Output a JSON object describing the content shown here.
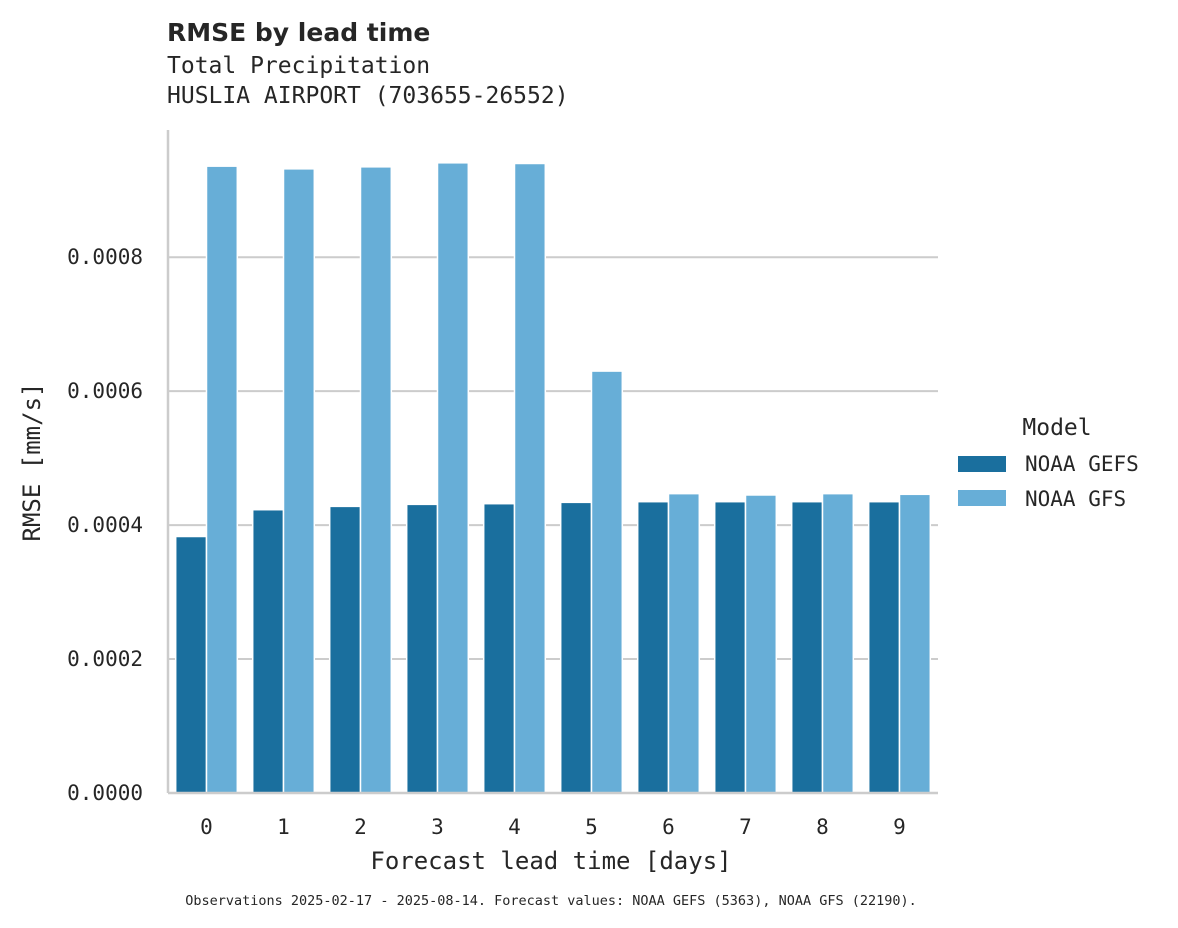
{
  "chart_data": {
    "type": "bar",
    "title": "RMSE by lead time",
    "subtitle_lines": [
      "Total Precipitation",
      "HUSLIA AIRPORT (703655-26552)"
    ],
    "xlabel": "Forecast lead time [days]",
    "ylabel": "RMSE [mm/s]",
    "ylim": [
      0,
      0.00099
    ],
    "yticks": [
      "0.0000",
      "0.0002",
      "0.0004",
      "0.0006",
      "0.0008"
    ],
    "ytick_values": [
      0,
      0.0002,
      0.0004,
      0.0006,
      0.0008
    ],
    "categories": [
      "0",
      "1",
      "2",
      "3",
      "4",
      "5",
      "6",
      "7",
      "8",
      "9"
    ],
    "grid": "horizontal",
    "legend": {
      "title": "Model",
      "placement": "right"
    },
    "series": [
      {
        "name": "NOAA GEFS",
        "color": "#1a6f9e",
        "values": [
          0.000383,
          0.000423,
          0.000428,
          0.000431,
          0.000432,
          0.000434,
          0.000435,
          0.000435,
          0.000435,
          0.000435
        ]
      },
      {
        "name": "NOAA GFS",
        "color": "#67aed7",
        "values": [
          0.000936,
          0.000932,
          0.000935,
          0.000941,
          0.00094,
          0.00063,
          0.000447,
          0.000445,
          0.000447,
          0.000446
        ]
      }
    ],
    "footnote": "Observations 2025-02-17 - 2025-08-14. Forecast values: NOAA GEFS (5363), NOAA GFS (22190)."
  }
}
